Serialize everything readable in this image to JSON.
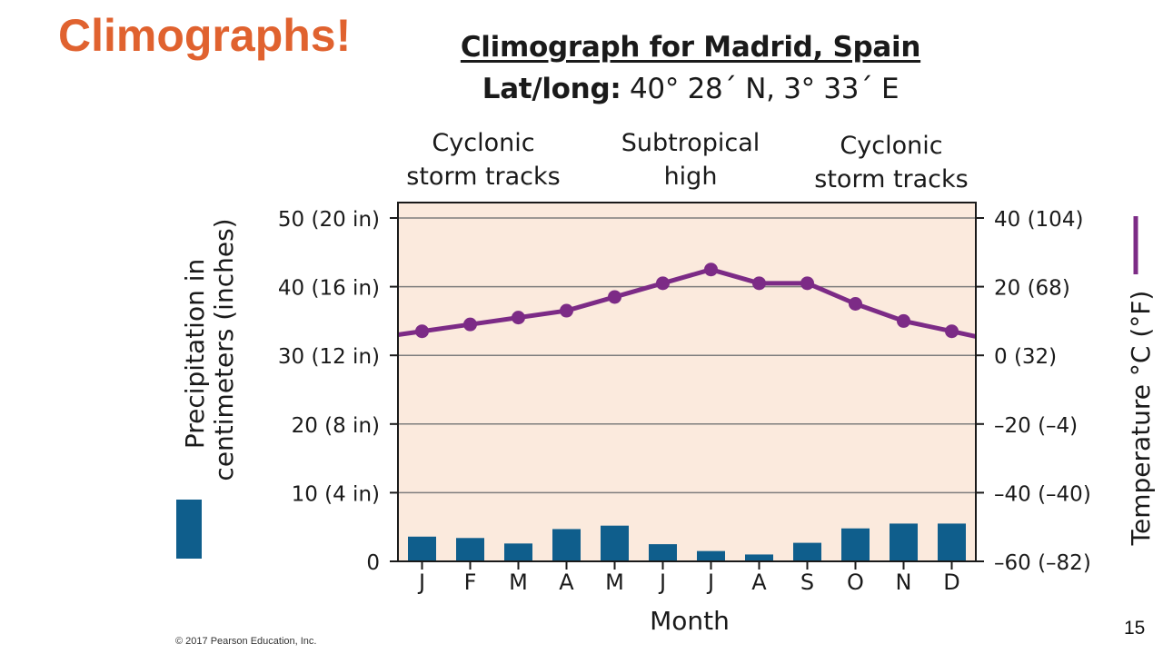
{
  "slide": {
    "title": "Climographs!",
    "copyright": "© 2017 Pearson Education, Inc.",
    "page_number": "15"
  },
  "colors": {
    "slide_title": "#e0622f",
    "plot_background": "#fbeadd",
    "precipitation_bar": "#0f5e8c",
    "temperature_line": "#7c2b86"
  },
  "chart_data": {
    "type": "bar",
    "title": "Climograph for Madrid, Spain",
    "subtitle_label": "Lat/long:",
    "subtitle_value": "40° 28´ N, 3° 33´ E",
    "xlabel": "Month",
    "ylabel_left": "Precipitation in centimeters (inches)",
    "ylabel_right": "Temperature °C (°F)",
    "categories": [
      "J",
      "F",
      "M",
      "A",
      "M",
      "J",
      "J",
      "A",
      "S",
      "O",
      "N",
      "D"
    ],
    "ylim_left": [
      0,
      50
    ],
    "ylim_right": [
      -60,
      40
    ],
    "left_ticks": [
      {
        "value": 0,
        "label": "0"
      },
      {
        "value": 10,
        "label": "10 (4 in)"
      },
      {
        "value": 20,
        "label": "20 (8 in)"
      },
      {
        "value": 30,
        "label": "30 (12 in)"
      },
      {
        "value": 40,
        "label": "40 (16 in)"
      },
      {
        "value": 50,
        "label": "50 (20 in)"
      }
    ],
    "right_ticks": [
      {
        "value": -60,
        "label": "–60 (–82)"
      },
      {
        "value": -40,
        "label": "–40 (–40)"
      },
      {
        "value": -20,
        "label": "–20 (–4)"
      },
      {
        "value": 0,
        "label": "0 (32)"
      },
      {
        "value": 20,
        "label": "20 (68)"
      },
      {
        "value": 40,
        "label": "40 (104)"
      }
    ],
    "grid": true,
    "series": [
      {
        "kind": "bar",
        "axis": "left",
        "values": [
          3.6,
          3.4,
          2.6,
          4.7,
          5.2,
          2.5,
          1.5,
          1.0,
          2.7,
          4.8,
          5.5,
          5.5
        ]
      },
      {
        "kind": "line",
        "axis": "right",
        "values": [
          7,
          9,
          11,
          13,
          17,
          21,
          25,
          21,
          21,
          15,
          10,
          7
        ]
      }
    ],
    "annotations": [
      {
        "text": [
          "Cyclonic",
          "storm tracks"
        ],
        "position": "over Jan–Mar"
      },
      {
        "text": [
          "Subtropical",
          "high"
        ],
        "position": "over Jun–Aug"
      },
      {
        "text": [
          "Cyclonic",
          "storm tracks"
        ],
        "position": "over Oct–Dec"
      }
    ]
  }
}
